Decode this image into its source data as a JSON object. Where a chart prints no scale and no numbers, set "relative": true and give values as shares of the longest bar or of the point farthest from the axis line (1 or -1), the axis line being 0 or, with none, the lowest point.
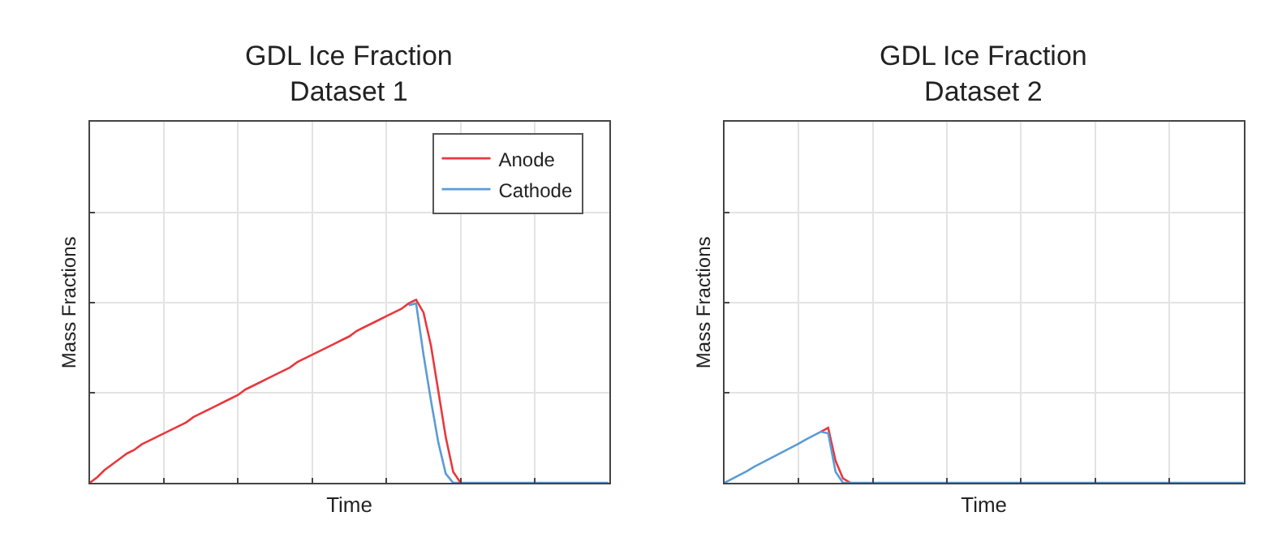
{
  "chart_data": [
    {
      "type": "line",
      "title": "GDL Ice Fraction\nDataset 1",
      "xlabel": "Time",
      "ylabel": "Mass Fractions",
      "relative": true,
      "grid": true,
      "legend": "top right",
      "categories": [
        null,
        null,
        null,
        null,
        null,
        null,
        null,
        null,
        null,
        null,
        null,
        null,
        null,
        null,
        null,
        null,
        null,
        null,
        null,
        null,
        null,
        null,
        null,
        null,
        null,
        null,
        null,
        null,
        null,
        null,
        null,
        null,
        null,
        null,
        null,
        null,
        null,
        null,
        null,
        null,
        null,
        null,
        null,
        null,
        null,
        null,
        null,
        null,
        null,
        null,
        null,
        null,
        null,
        null,
        null,
        null,
        null,
        null,
        null,
        null,
        null,
        null,
        null,
        null,
        null,
        null,
        null,
        null,
        null,
        null,
        null
      ],
      "series": [
        {
          "name": "Cathode",
          "color": "#5b9bd5",
          "values": [
            null,
            null,
            null,
            null,
            null,
            null,
            null,
            null,
            null,
            null,
            null,
            null,
            null,
            null,
            null,
            null,
            null,
            null,
            null,
            null,
            null,
            null,
            null,
            null,
            null,
            null,
            null,
            null,
            null,
            null,
            null,
            null,
            null,
            null,
            null,
            null,
            null,
            null,
            null,
            null,
            null,
            null,
            null,
            0.97,
            0.98,
            0.7,
            0.45,
            0.22,
            0.05,
            0,
            0,
            0,
            0,
            0,
            0,
            0,
            0,
            0,
            0,
            0,
            0,
            0,
            0,
            0,
            0,
            0,
            0,
            0,
            0,
            0,
            0
          ]
        },
        {
          "name": "Anode",
          "color": "#e8383d",
          "values": [
            0,
            0.03,
            0.07,
            0.1,
            0.13,
            0.16,
            0.18,
            0.21,
            0.23,
            0.25,
            0.27,
            0.29,
            0.31,
            0.33,
            0.36,
            0.38,
            0.4,
            0.42,
            0.44,
            0.46,
            0.48,
            0.51,
            0.53,
            0.55,
            0.57,
            0.59,
            0.61,
            0.63,
            0.66,
            0.68,
            0.7,
            0.72,
            0.74,
            0.76,
            0.78,
            0.8,
            0.83,
            0.85,
            0.87,
            0.89,
            0.91,
            0.93,
            0.95,
            0.98,
            1,
            0.93,
            0.75,
            0.5,
            0.25,
            0.06,
            0,
            null,
            null,
            null,
            null,
            null,
            null,
            null,
            null,
            null,
            null,
            null,
            null,
            null,
            null,
            null,
            null,
            null,
            null,
            null,
            null
          ]
        }
      ]
    },
    {
      "type": "line",
      "title": "GDL Ice Fraction\nDataset 2",
      "xlabel": "Time",
      "ylabel": "Mass Fractions",
      "relative": true,
      "grid": true,
      "categories": [
        null,
        null,
        null,
        null,
        null,
        null,
        null,
        null,
        null,
        null,
        null,
        null,
        null,
        null,
        null,
        null,
        null,
        null,
        null,
        null,
        null,
        null,
        null,
        null,
        null,
        null,
        null,
        null,
        null,
        null,
        null,
        null,
        null,
        null,
        null,
        null,
        null,
        null,
        null,
        null,
        null,
        null,
        null,
        null,
        null,
        null,
        null,
        null,
        null,
        null,
        null,
        null,
        null,
        null,
        null,
        null,
        null,
        null,
        null,
        null,
        null,
        null,
        null,
        null,
        null,
        null,
        null,
        null,
        null,
        null,
        null
      ],
      "series": [
        {
          "color": "#e8383d",
          "values": [
            null,
            null,
            null,
            null,
            null,
            null,
            null,
            null,
            null,
            null,
            null,
            null,
            null,
            0.93,
            1,
            0.4,
            0.08,
            0,
            null,
            null,
            null,
            null,
            null,
            null,
            null,
            null,
            null,
            null,
            null,
            null,
            null,
            null,
            null,
            null,
            null,
            null,
            null,
            null,
            null,
            null,
            null,
            null,
            null,
            null,
            null,
            null,
            null,
            null,
            null,
            null,
            null,
            null,
            null,
            null,
            null,
            null,
            null,
            null,
            null,
            null,
            null,
            null,
            null,
            null,
            null,
            null,
            null,
            null,
            null,
            null,
            null
          ]
        },
        {
          "color": "#5b9bd5",
          "values": [
            0,
            0.07,
            0.14,
            0.21,
            0.29,
            0.36,
            0.43,
            0.5,
            0.57,
            0.64,
            0.71,
            0.79,
            0.86,
            0.93,
            0.9,
            0.2,
            0,
            0,
            0,
            0,
            0,
            0,
            0,
            0,
            0,
            0,
            0,
            0,
            0,
            0,
            0,
            0,
            0,
            0,
            0,
            0,
            0,
            0,
            0,
            0,
            0,
            0,
            0,
            0,
            0,
            0,
            0,
            0,
            0,
            0,
            0,
            0,
            0,
            0,
            0,
            0,
            0,
            0,
            0,
            0,
            0,
            0,
            0,
            0,
            0,
            0,
            0,
            0,
            0,
            0,
            0
          ]
        }
      ]
    }
  ]
}
